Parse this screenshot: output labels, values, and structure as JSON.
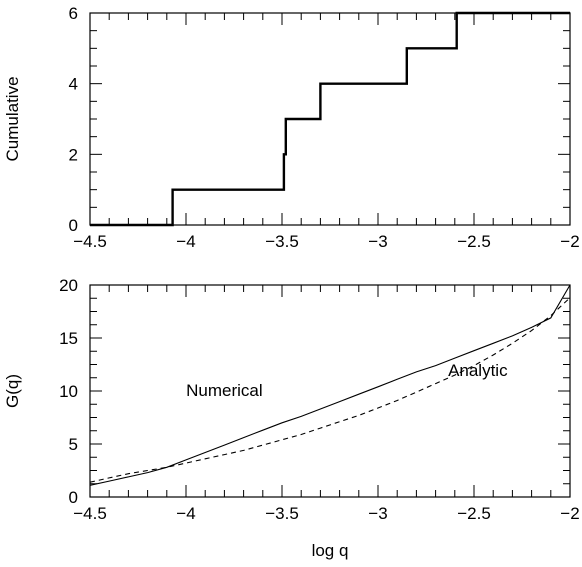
{
  "chart_data": [
    {
      "type": "line",
      "step": true,
      "ylabel": "Cumulative",
      "xlabel": "",
      "xlim": [
        -4.5,
        -2
      ],
      "ylim": [
        0,
        6
      ],
      "xticks": [
        -4.5,
        -4,
        -3.5,
        -3,
        -2.5,
        -2
      ],
      "xtick_labels": [
        "−4.5",
        "−4",
        "−3.5",
        "−3",
        "−2.5",
        "−2"
      ],
      "yticks": [
        0,
        2,
        4,
        6
      ],
      "ytick_labels": [
        "0",
        "2",
        "4",
        "6"
      ],
      "series": [
        {
          "style": "solid-thick",
          "x": [
            -4.5,
            -4.07,
            -4.07,
            -3.49,
            -3.49,
            -3.48,
            -3.48,
            -3.3,
            -3.3,
            -2.85,
            -2.85,
            -2.59,
            -2.59,
            -2.0
          ],
          "y": [
            0,
            0,
            1,
            1,
            2,
            2,
            3,
            3,
            4,
            4,
            5,
            5,
            6,
            6
          ]
        }
      ]
    },
    {
      "type": "line",
      "xlabel": "log q",
      "ylabel": "G(q)",
      "xlim": [
        -4.5,
        -2
      ],
      "ylim": [
        0,
        20
      ],
      "xticks": [
        -4.5,
        -4,
        -3.5,
        -3,
        -2.5,
        -2
      ],
      "xtick_labels": [
        "−4.5",
        "−4",
        "−3.5",
        "−3",
        "−2.5",
        "−2"
      ],
      "yticks": [
        0,
        5,
        10,
        15,
        20
      ],
      "ytick_labels": [
        "0",
        "5",
        "10",
        "15",
        "20"
      ],
      "series": [
        {
          "name": "Numerical",
          "style": "solid",
          "x": [
            -4.5,
            -4.4,
            -4.3,
            -4.2,
            -4.1,
            -4.0,
            -3.9,
            -3.8,
            -3.7,
            -3.6,
            -3.5,
            -3.4,
            -3.3,
            -3.2,
            -3.1,
            -3.0,
            -2.9,
            -2.8,
            -2.7,
            -2.6,
            -2.5,
            -2.4,
            -2.3,
            -2.2,
            -2.1,
            -2.0
          ],
          "y": [
            1.1,
            1.5,
            1.9,
            2.3,
            2.8,
            3.5,
            4.2,
            4.9,
            5.6,
            6.3,
            7.0,
            7.6,
            8.3,
            9.0,
            9.7,
            10.4,
            11.1,
            11.8,
            12.4,
            13.1,
            13.8,
            14.5,
            15.2,
            16.0,
            16.9,
            20.0
          ]
        },
        {
          "name": "Analytic",
          "style": "dashed",
          "x": [
            -4.5,
            -4.4,
            -4.3,
            -4.2,
            -4.1,
            -4.0,
            -3.9,
            -3.8,
            -3.7,
            -3.6,
            -3.5,
            -3.4,
            -3.3,
            -3.2,
            -3.1,
            -3.0,
            -2.9,
            -2.8,
            -2.7,
            -2.6,
            -2.5,
            -2.4,
            -2.3,
            -2.2,
            -2.1,
            -2.0
          ],
          "y": [
            1.4,
            1.8,
            2.2,
            2.5,
            2.8,
            3.2,
            3.6,
            4.0,
            4.4,
            4.9,
            5.4,
            5.9,
            6.5,
            7.1,
            7.7,
            8.4,
            9.1,
            9.9,
            10.7,
            11.5,
            12.4,
            13.4,
            14.5,
            15.7,
            17.1,
            18.8
          ]
        }
      ],
      "annotations": [
        {
          "text": "Numerical",
          "x": -3.8,
          "y": 10.1
        },
        {
          "text": "Analytic",
          "x": -2.48,
          "y": 12.0
        }
      ]
    }
  ]
}
